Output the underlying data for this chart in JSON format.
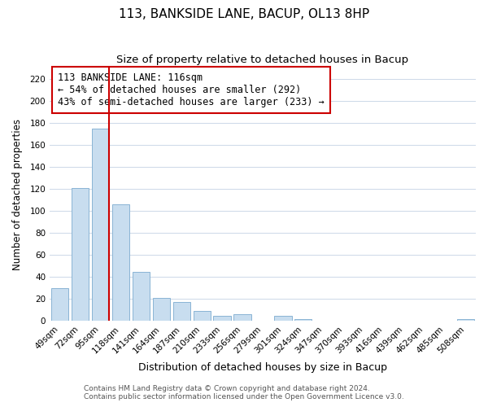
{
  "title": "113, BANKSIDE LANE, BACUP, OL13 8HP",
  "subtitle": "Size of property relative to detached houses in Bacup",
  "xlabel": "Distribution of detached houses by size in Bacup",
  "ylabel": "Number of detached properties",
  "bar_labels": [
    "49sqm",
    "72sqm",
    "95sqm",
    "118sqm",
    "141sqm",
    "164sqm",
    "187sqm",
    "210sqm",
    "233sqm",
    "256sqm",
    "279sqm",
    "301sqm",
    "324sqm",
    "347sqm",
    "370sqm",
    "393sqm",
    "416sqm",
    "439sqm",
    "462sqm",
    "485sqm",
    "508sqm"
  ],
  "bar_values": [
    30,
    121,
    175,
    106,
    45,
    21,
    17,
    9,
    5,
    6,
    0,
    5,
    2,
    0,
    0,
    0,
    0,
    0,
    0,
    0,
    2
  ],
  "bar_color": "#c8ddef",
  "bar_edge_color": "#8ab4d4",
  "vline_color": "#cc0000",
  "vline_bar_index": 2,
  "ylim": [
    0,
    230
  ],
  "yticks": [
    0,
    20,
    40,
    60,
    80,
    100,
    120,
    140,
    160,
    180,
    200,
    220
  ],
  "annotation_title": "113 BANKSIDE LANE: 116sqm",
  "annotation_line1": "← 54% of detached houses are smaller (292)",
  "annotation_line2": "43% of semi-detached houses are larger (233) →",
  "annotation_box_edge": "#cc0000",
  "footer1": "Contains HM Land Registry data © Crown copyright and database right 2024.",
  "footer2": "Contains public sector information licensed under the Open Government Licence v3.0.",
  "bg_color": "#ffffff",
  "grid_color": "#ccd8e8",
  "title_fontsize": 11,
  "subtitle_fontsize": 9.5,
  "xlabel_fontsize": 9,
  "ylabel_fontsize": 8.5,
  "tick_fontsize": 7.5,
  "annotation_fontsize": 8.5,
  "footer_fontsize": 6.5
}
